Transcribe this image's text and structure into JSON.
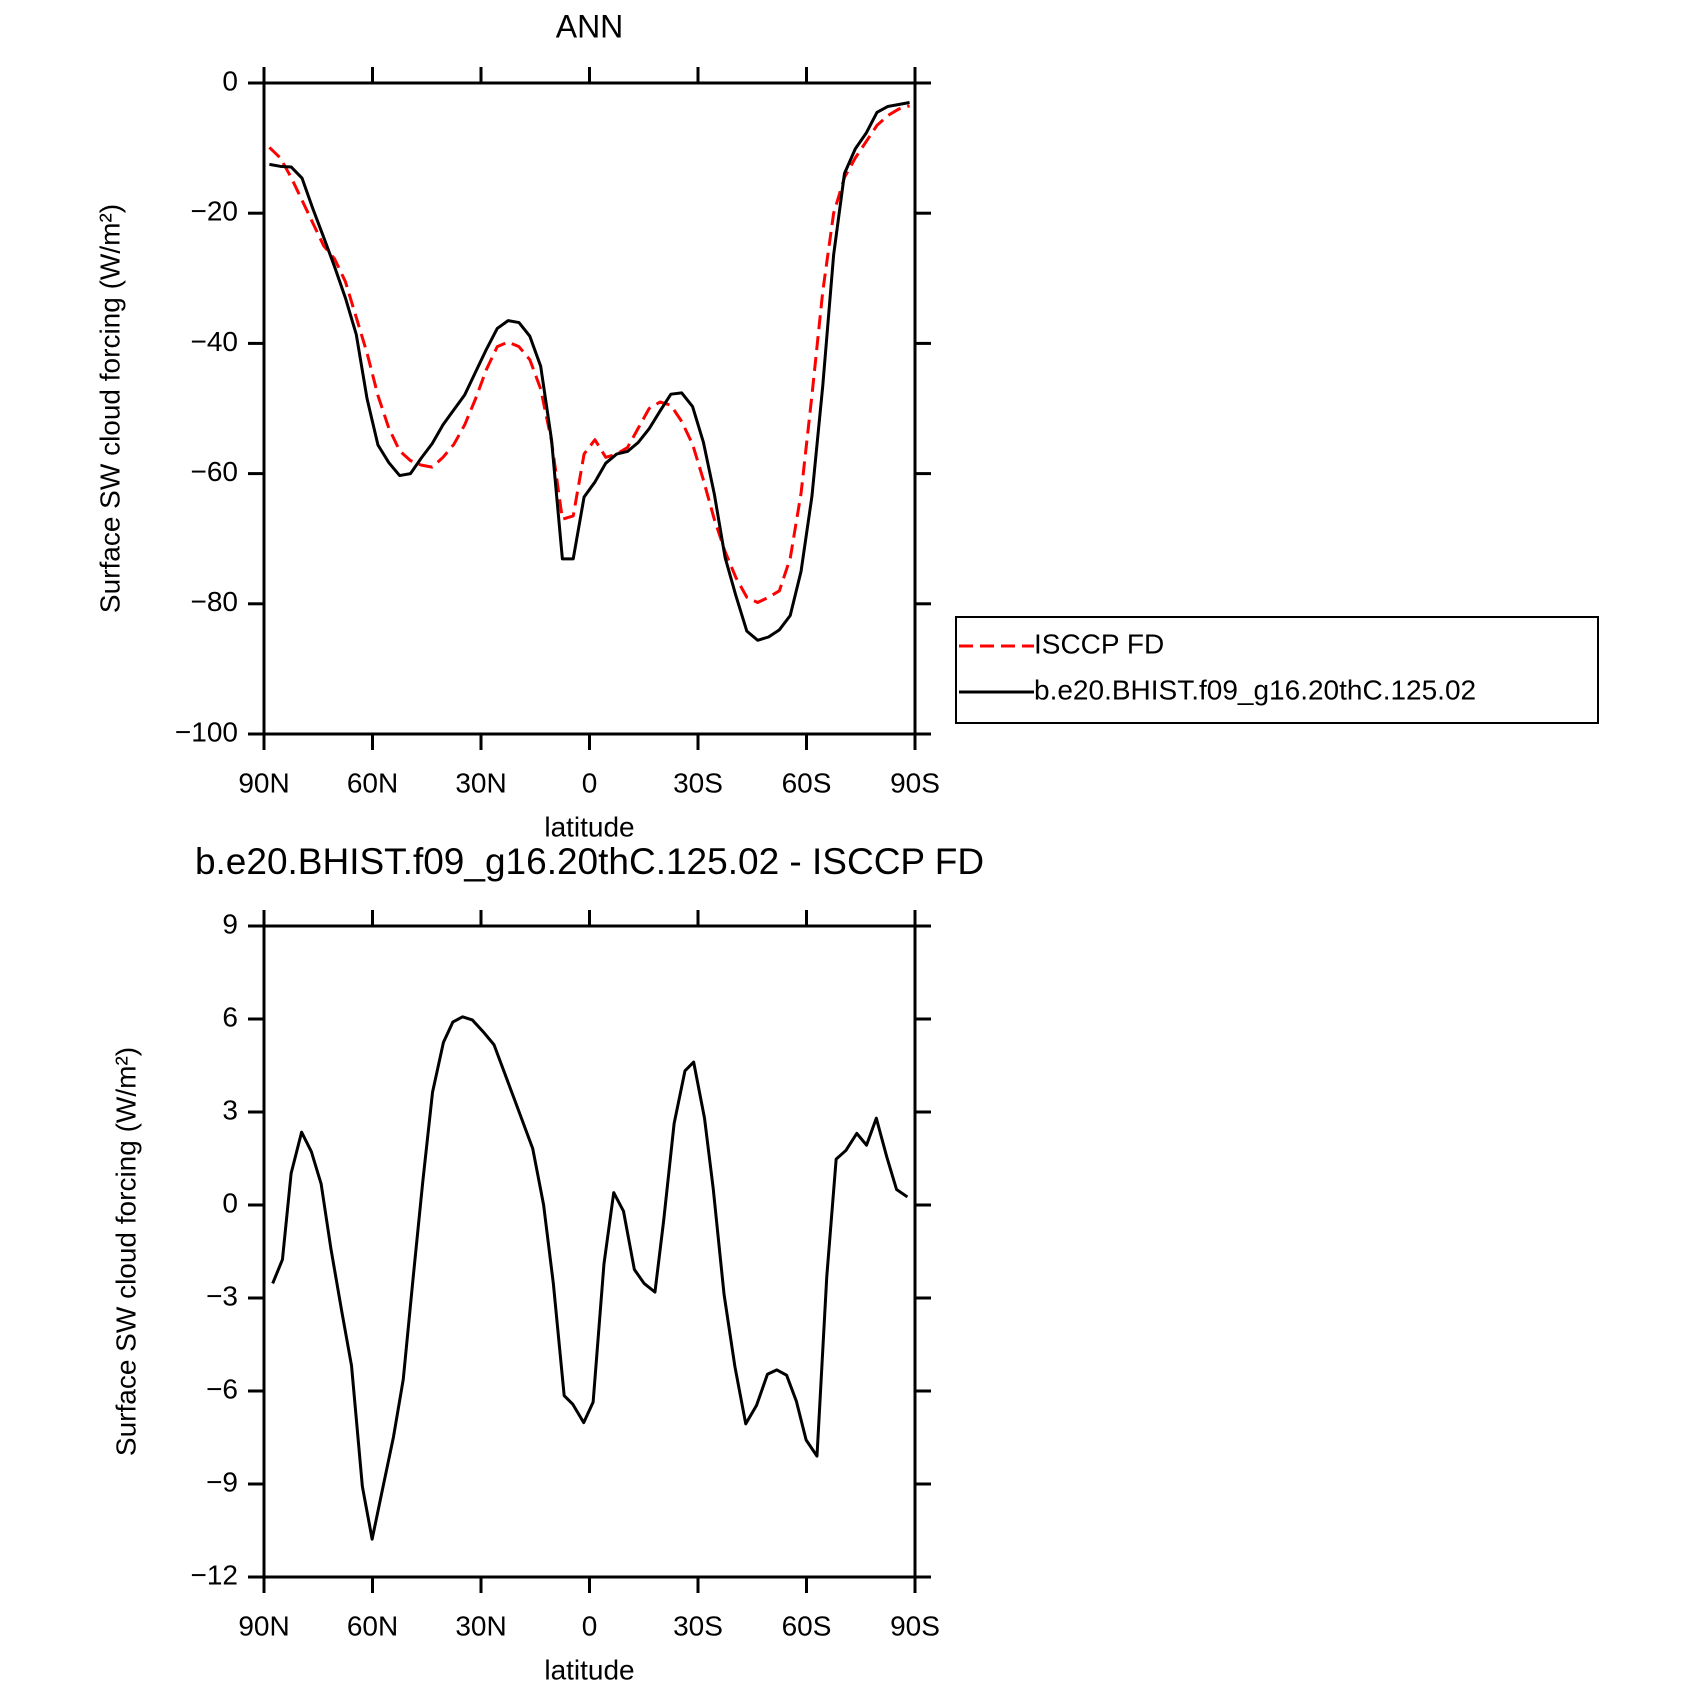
{
  "chart_data": [
    {
      "type": "line",
      "title": "ANN",
      "xlabel": "latitude",
      "ylabel": "Surface SW cloud forcing (W/m²)",
      "x": [
        88.5,
        85.5,
        82.5,
        79.5,
        76.5,
        73.5,
        70.5,
        67.5,
        64.5,
        61.5,
        58.5,
        55.5,
        52.5,
        49.5,
        46.5,
        43.5,
        40.5,
        37.5,
        34.5,
        31.5,
        28.5,
        25.5,
        22.5,
        19.5,
        16.5,
        13.5,
        10.5,
        7.5,
        4.5,
        1.5,
        -1.5,
        -4.5,
        -7.5,
        -10.5,
        -13.5,
        -16.5,
        -19.5,
        -22.5,
        -25.5,
        -28.5,
        -31.5,
        -34.5,
        -37.5,
        -40.5,
        -43.5,
        -46.5,
        -49.5,
        -52.5,
        -55.5,
        -58.5,
        -61.5,
        -64.5,
        -67.5,
        -70.5,
        -73.5,
        -76.5,
        -79.5,
        -82.5,
        -85.5,
        -88.5
      ],
      "series": [
        {
          "name": "ISCCP FD",
          "color": "#ff0000",
          "linestyle": "dashed",
          "values": [
            -9.9,
            -11.5,
            -14.5,
            -18,
            -21.5,
            -25,
            -27,
            -30.5,
            -36,
            -41.5,
            -48,
            -53,
            -56.5,
            -58,
            -58.7,
            -59,
            -57.5,
            -55.5,
            -52.5,
            -48.5,
            -44,
            -40.5,
            -39.8,
            -40.5,
            -42.5,
            -47,
            -55,
            -67,
            -66.5,
            -57,
            -54.8,
            -57.5,
            -57,
            -56,
            -53,
            -50,
            -49,
            -49.5,
            -52,
            -55.5,
            -61,
            -67,
            -72,
            -76,
            -79,
            -79.8,
            -79,
            -78,
            -73,
            -63,
            -48,
            -32,
            -20,
            -14.5,
            -11.5,
            -9,
            -6.5,
            -5,
            -4,
            -3.5
          ]
        },
        {
          "name": "b.e20.BHIST.f09_g16.20thC.125.02",
          "color": "#000000",
          "linestyle": "solid",
          "values": [
            -12.5,
            -12.8,
            -12.9,
            -14.6,
            -19.3,
            -23.7,
            -28.2,
            -33,
            -38.6,
            -48.5,
            -55.6,
            -58.3,
            -60.3,
            -60,
            -57.6,
            -55.4,
            -52.5,
            -50.2,
            -47.9,
            -44.4,
            -40.9,
            -37.7,
            -36.5,
            -36.8,
            -38.9,
            -43.5,
            -54.8,
            -73.1,
            -73.1,
            -63.6,
            -61.3,
            -58.4,
            -57,
            -56.6,
            -55.2,
            -53.1,
            -50.4,
            -47.8,
            -47.6,
            -49.7,
            -55.2,
            -63.1,
            -72.9,
            -78.8,
            -84.2,
            -85.6,
            -85.1,
            -84,
            -81.8,
            -75,
            -63.5,
            -46.5,
            -26.4,
            -13.9,
            -10.1,
            -7.7,
            -4.5,
            -3.6,
            -3.3,
            -3
          ]
        }
      ],
      "xlim": [
        90,
        -90
      ],
      "ylim": [
        0,
        -100
      ],
      "xticks": [
        {
          "value": 90,
          "label": "90N"
        },
        {
          "value": 60,
          "label": "60N"
        },
        {
          "value": 30,
          "label": "30N"
        },
        0,
        {
          "value": -30,
          "label": "30S"
        },
        {
          "value": -60,
          "label": "60S"
        },
        {
          "value": -90,
          "label": "90S"
        }
      ],
      "yticks": [
        0,
        {
          "value": -20,
          "label": "−20"
        },
        {
          "value": -40,
          "label": "−40"
        },
        {
          "value": -60,
          "label": "−60"
        },
        {
          "value": -80,
          "label": "−80"
        },
        {
          "value": -100,
          "label": "−100"
        }
      ],
      "legend": "outside right"
    },
    {
      "type": "line",
      "title": "b.e20.BHIST.f09_g16.20thC.125.02 - ISCCP FD",
      "xlabel": "latitude",
      "ylabel": "Surface SW cloud forcing (W/m²)",
      "x": [
        87.6,
        84.9,
        82.5,
        79.6,
        76.9,
        74.2,
        71.5,
        68.5,
        65.8,
        62.8,
        60.1,
        57.2,
        54.2,
        51.5,
        48.8,
        46.1,
        43.4,
        40.4,
        37.8,
        35.1,
        32.4,
        29.4,
        26.4,
        20.7,
        15.7,
        12.7,
        10,
        7,
        4.6,
        1.6,
        -1,
        -4,
        -6.7,
        -9.4,
        -12.4,
        -15.1,
        -18.1,
        -20.5,
        -23.4,
        -26.4,
        -28.8,
        -31.8,
        -34.2,
        -37.2,
        -40.2,
        -43.2,
        -46.2,
        -49.2,
        -51.8,
        -54.5,
        -57.2,
        -59.9,
        -62.9,
        -65.6,
        -68.2,
        -70.9,
        -73.9,
        -76.6,
        -79.3,
        -82.2,
        -84.9,
        -87.9
      ],
      "series": [
        {
          "color": "#000000",
          "linestyle": "solid",
          "values": [
            -2.53,
            -1.76,
            1.02,
            2.35,
            1.72,
            0.68,
            -1.41,
            -3.43,
            -5.18,
            -9.08,
            -10.78,
            -9.15,
            -7.48,
            -5.63,
            -2.39,
            0.75,
            3.64,
            5.24,
            5.9,
            6.07,
            5.97,
            5.59,
            5.17,
            3.39,
            1.82,
            0.01,
            -2.53,
            -6.15,
            -6.43,
            -7.02,
            -6.36,
            -1.9,
            0.4,
            -0.2,
            -2.08,
            -2.53,
            -2.81,
            -0.51,
            2.63,
            4.33,
            4.61,
            2.8,
            0.54,
            -2.88,
            -5.21,
            -7.06,
            -6.46,
            -5.46,
            -5.32,
            -5.49,
            -6.33,
            -7.58,
            -8.1,
            -2.32,
            1.48,
            1.76,
            2.31,
            1.93,
            2.8,
            1.55,
            0.5,
            0.26
          ]
        }
      ],
      "xlim": [
        90,
        -90
      ],
      "ylim": [
        9,
        -12
      ],
      "xticks": [
        {
          "value": 90,
          "label": "90N"
        },
        {
          "value": 60,
          "label": "60N"
        },
        {
          "value": 30,
          "label": "30N"
        },
        0,
        {
          "value": -30,
          "label": "30S"
        },
        {
          "value": -60,
          "label": "60S"
        },
        {
          "value": -90,
          "label": "90S"
        }
      ],
      "yticks": [
        9,
        6,
        3,
        0,
        {
          "value": -3,
          "label": "−3"
        },
        {
          "value": -6,
          "label": "−6"
        },
        {
          "value": -9,
          "label": "−9"
        },
        {
          "value": -12,
          "label": "−12"
        }
      ]
    }
  ]
}
